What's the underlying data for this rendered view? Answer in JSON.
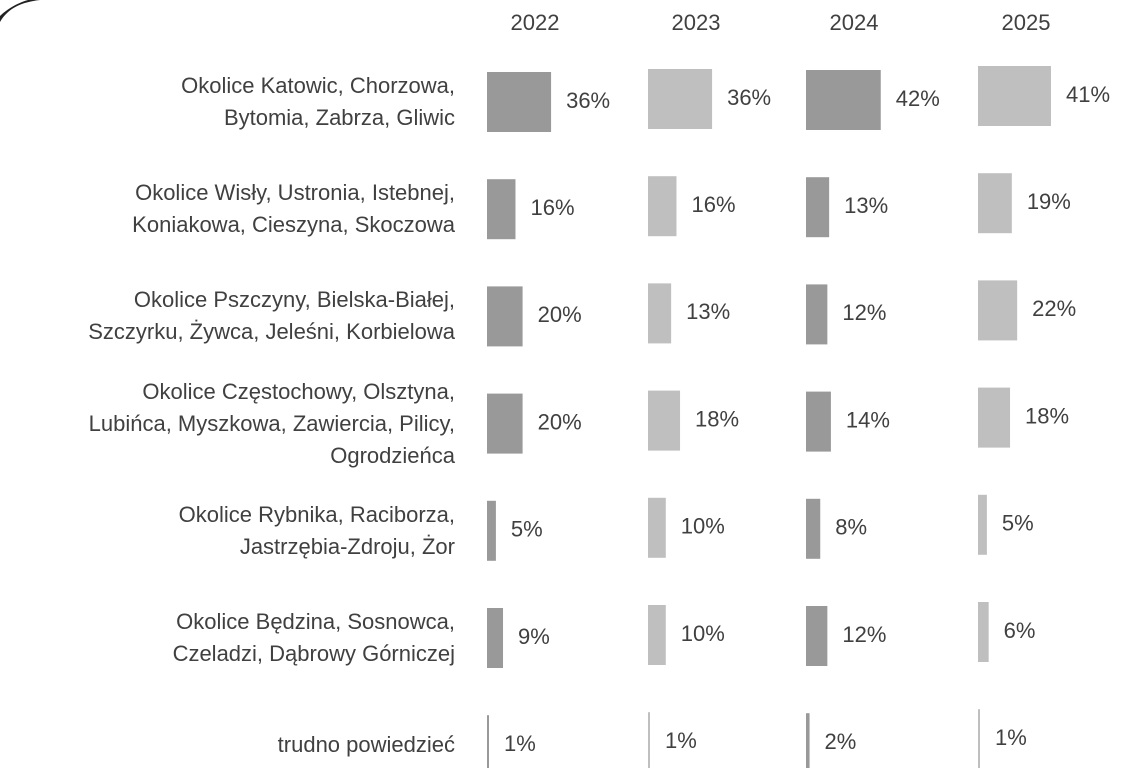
{
  "chart_data": {
    "type": "bar",
    "categories": [
      "Okolice Katowic, Chorzowa,\nBytomia, Zabrza, Gliwic",
      "Okolice Wisły, Ustronia, Istebnej,\nKoniakowa, Cieszyna, Skoczowa",
      "Okolice Pszczyny, Bielska-Białej,\nSzczyrku, Żywca, Jeleśni, Korbielowa",
      "Okolice Częstochowy, Olsztyna,\nLubińca, Myszkowa, Zawiercia, Pilicy,\nOgrodzieńca",
      "Okolice Rybnika, Raciborza,\nJastrzębia-Zdroju, Żor",
      "Okolice Będzina, Sosnowca,\nCzeladzi, Dąbrowy Górniczej",
      "trudno powiedzieć"
    ],
    "series": [
      {
        "name": "2022",
        "color": "#999999",
        "values": [
          36,
          16,
          20,
          20,
          5,
          9,
          1
        ],
        "value_labels": [
          "36%",
          "16%",
          "20%",
          "20%",
          "5%",
          "9%",
          "1%"
        ]
      },
      {
        "name": "2023",
        "color": "#bfbfbf",
        "values": [
          36,
          16,
          13,
          18,
          10,
          10,
          1
        ],
        "value_labels": [
          "36%",
          "16%",
          "13%",
          "18%",
          "10%",
          "10%",
          "1%"
        ]
      },
      {
        "name": "2024",
        "color": "#999999",
        "values": [
          42,
          13,
          12,
          14,
          8,
          12,
          2
        ],
        "value_labels": [
          "42%",
          "13%",
          "12%",
          "14%",
          "8%",
          "12%",
          "2%"
        ]
      },
      {
        "name": "2025",
        "color": "#bfbfbf",
        "values": [
          41,
          19,
          22,
          18,
          5,
          6,
          1
        ],
        "value_labels": [
          "41%",
          "19%",
          "22%",
          "18%",
          "5%",
          "6%",
          "1%"
        ]
      }
    ]
  }
}
